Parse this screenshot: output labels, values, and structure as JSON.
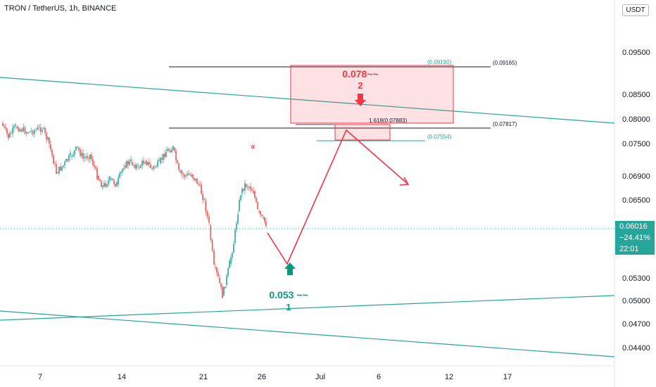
{
  "header": {
    "title": "TRON / TetherUS, 1h, BINANCE"
  },
  "currency_button": "USDT",
  "price_tag": {
    "price": "0.06016",
    "change": "−24.41%",
    "countdown": "22:01",
    "color": "#26a69a"
  },
  "colors": {
    "up": "#26a69a",
    "down": "#ef5350",
    "projection": "#f23645",
    "channel": "#26a69a"
  },
  "chart_data": {
    "type": "candlestick",
    "title": "TRON / TetherUS, 1h, BINANCE",
    "y_tick_labels": [
      "0.09500",
      "0.08500",
      "0.08000",
      "0.07500",
      "0.06900",
      "0.06500",
      "0.05300",
      "0.05000",
      "0.04700",
      "0.04400"
    ],
    "x_tick_labels": [
      "7",
      "14",
      "21",
      "26",
      "Jul",
      "6",
      "12",
      "17"
    ],
    "levels": [
      {
        "label": "(0.09190)",
        "color": "#26a69a"
      },
      {
        "label": "(0.09165)",
        "color": "#131722"
      },
      {
        "label": "1.618(0.07883)",
        "color": "#131722"
      },
      {
        "label": "(0.07817)",
        "color": "#131722"
      },
      {
        "label": "(0.07554)",
        "color": "#26a69a"
      }
    ],
    "annotations": {
      "target_high_price": "0.078~~",
      "target_high_wave": "2",
      "target_low_price": "0.053 ~~",
      "target_low_wave": "1",
      "letter": "a"
    },
    "projection_path": [
      {
        "t": "Jun 26",
        "price": 0.0595
      },
      {
        "t": "Jun 28",
        "price": 0.0538
      },
      {
        "t": "Jul 3",
        "price": 0.0778
      },
      {
        "t": "Jul 7",
        "price": 0.069
      }
    ]
  }
}
